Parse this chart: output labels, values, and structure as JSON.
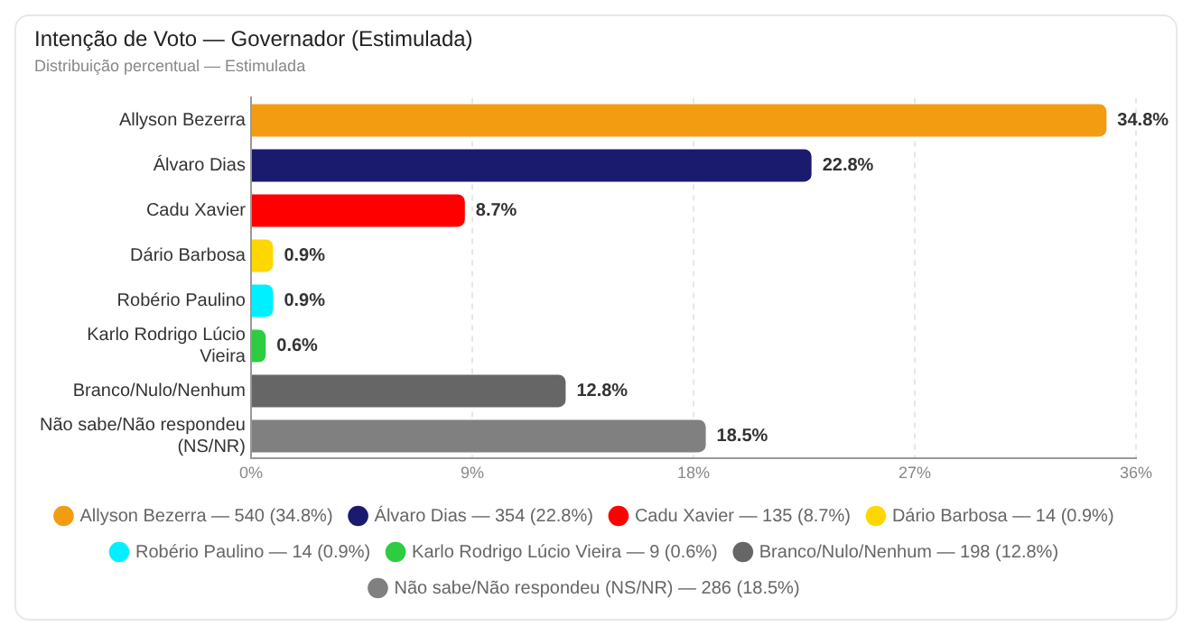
{
  "chart_data": {
    "type": "bar",
    "orientation": "horizontal",
    "stacked": true,
    "title": "Intenção de Voto — Governador (Estimulada)",
    "subtitle": "Distribuição percentual — Estimulada",
    "categories": [
      "Allyson Bezerra",
      "Álvaro Dias",
      "Cadu Xavier",
      "Dário Barbosa",
      "Robério Paulino",
      "Karlo Rodrigo Lúcio Vieira",
      "Branco/Nulo/Nenhum",
      "Não sabe/Não respondeu (NS/NR)"
    ],
    "series": [
      {
        "name": "Allyson Bezerra — 540 (34.8%)",
        "color": "#f39c12",
        "values": [
          34.8,
          null,
          null,
          null,
          null,
          null,
          null,
          null
        ],
        "value_labels": [
          "34.8%",
          null,
          null,
          null,
          null,
          null,
          null,
          null
        ]
      },
      {
        "name": "Álvaro Dias — 354 (22.8%)",
        "color": "#1a1a6e",
        "values": [
          null,
          22.8,
          null,
          null,
          null,
          null,
          null,
          null
        ],
        "value_labels": [
          null,
          "22.8%",
          null,
          null,
          null,
          null,
          null,
          null
        ]
      },
      {
        "name": "Cadu Xavier — 135 (8.7%)",
        "color": "#ff0000",
        "values": [
          null,
          null,
          8.7,
          null,
          null,
          null,
          null,
          null
        ],
        "value_labels": [
          null,
          null,
          "8.7%",
          null,
          null,
          null,
          null,
          null
        ]
      },
      {
        "name": "Dário Barbosa — 14 (0.9%)",
        "color": "#ffd700",
        "values": [
          null,
          null,
          null,
          0.9,
          null,
          null,
          null,
          null
        ],
        "value_labels": [
          null,
          null,
          null,
          "0.9%",
          null,
          null,
          null,
          null
        ]
      },
      {
        "name": "Robério Paulino — 14 (0.9%)",
        "color": "#00f0ff",
        "values": [
          null,
          null,
          null,
          null,
          0.9,
          null,
          null,
          null
        ],
        "value_labels": [
          null,
          null,
          null,
          null,
          "0.9%",
          null,
          null,
          null
        ]
      },
      {
        "name": "Karlo Rodrigo Lúcio Vieira — 9 (0.6%)",
        "color": "#2ecc40",
        "values": [
          null,
          null,
          null,
          null,
          null,
          0.6,
          null,
          null
        ],
        "value_labels": [
          null,
          null,
          null,
          null,
          null,
          "0.6%",
          null,
          null
        ]
      },
      {
        "name": "Branco/Nulo/Nenhum — 198 (12.8%)",
        "color": "#666666",
        "values": [
          null,
          null,
          null,
          null,
          null,
          null,
          12.8,
          null
        ],
        "value_labels": [
          null,
          null,
          null,
          null,
          null,
          null,
          "12.8%",
          null
        ]
      },
      {
        "name": "Não sabe/Não respondeu (NS/NR) — 286 (18.5%)",
        "color": "#808080",
        "values": [
          null,
          null,
          null,
          null,
          null,
          null,
          null,
          18.5
        ],
        "value_labels": [
          null,
          null,
          null,
          null,
          null,
          null,
          null,
          "18.5%"
        ]
      }
    ],
    "xlim": [
      0,
      36
    ],
    "xticks": [
      {
        "value": 0,
        "label": "0%"
      },
      {
        "value": 9,
        "label": "9%"
      },
      {
        "value": 18,
        "label": "18%"
      },
      {
        "value": 27,
        "label": "27%"
      },
      {
        "value": 36,
        "label": "36%"
      }
    ],
    "grid": "x",
    "legend": "bottom",
    "marker": "circle"
  }
}
